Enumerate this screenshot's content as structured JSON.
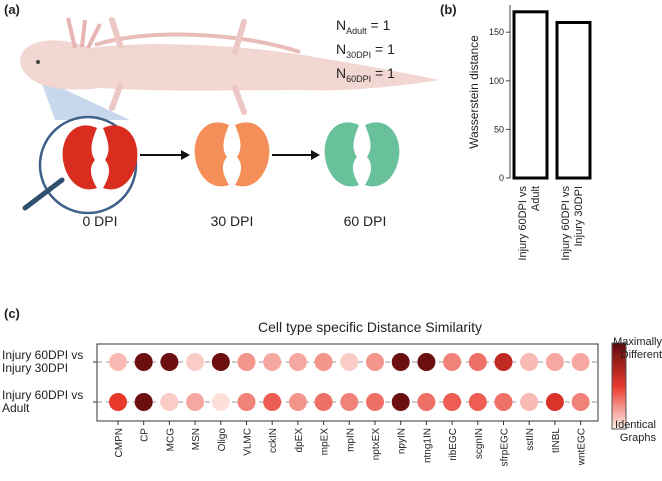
{
  "panel_a": {
    "label": "(a)",
    "n_labels": [
      {
        "main": "N",
        "sub": "Adult",
        "rest": " = 1"
      },
      {
        "main": "N",
        "sub": "30DPI",
        "rest": " = 1"
      },
      {
        "main": "N",
        "sub": "60DPI",
        "rest": " = 1"
      }
    ],
    "stages": [
      "0 DPI",
      "30 DPI",
      "60 DPI"
    ]
  },
  "panel_b_label": "(b)",
  "panel_c_label": "(c)",
  "chart_data": [
    {
      "type": "bar",
      "ylabel": "Wasserstein distance",
      "categories": [
        [
          "Injury 60DPI vs",
          "Adult"
        ],
        [
          "Injury 60DPI vs",
          "Injury 30DPI"
        ]
      ],
      "values": [
        171,
        160
      ],
      "color": "#ffffff",
      "edge_color": "#000000",
      "ylim": [
        0,
        178
      ],
      "yticks": [
        0,
        50,
        100,
        150
      ]
    },
    {
      "type": "dot_heatmap",
      "title": "Cell type specific Distance Similarity",
      "categories": [
        "CMPN",
        "CP",
        "MCG",
        "MSN",
        "Oligo",
        "VLMC",
        "cckIN",
        "dpEX",
        "mpEX",
        "mpIN",
        "nptxEX",
        "npyIN",
        "ntng1IN",
        "ribEGC",
        "scgnIN",
        "sfrpEGC",
        "sstIN",
        "tINBL",
        "wntEGC"
      ],
      "rows": [
        [
          "Injury 60DPI vs",
          "Injury 30DPI"
        ],
        [
          "Injury 60DPI vs",
          "Adult"
        ]
      ],
      "values": [
        [
          0.15,
          0.95,
          0.95,
          0.1,
          0.95,
          0.25,
          0.2,
          0.2,
          0.25,
          0.1,
          0.25,
          0.95,
          0.95,
          0.3,
          0.35,
          0.65,
          0.15,
          0.2,
          0.2
        ],
        [
          0.5,
          0.95,
          0.1,
          0.2,
          0.05,
          0.3,
          0.4,
          0.25,
          0.35,
          0.3,
          0.35,
          0.95,
          0.35,
          0.4,
          0.4,
          0.35,
          0.15,
          0.55,
          0.3
        ]
      ],
      "vlim": [
        0,
        1
      ],
      "colorscale": [
        "#fff1ec",
        "#e8382c",
        "#5e0a0d"
      ],
      "colorbar_max_label": [
        "Maximally",
        "Different"
      ],
      "colorbar_min_label": [
        "Identical",
        "Graphs"
      ]
    }
  ]
}
